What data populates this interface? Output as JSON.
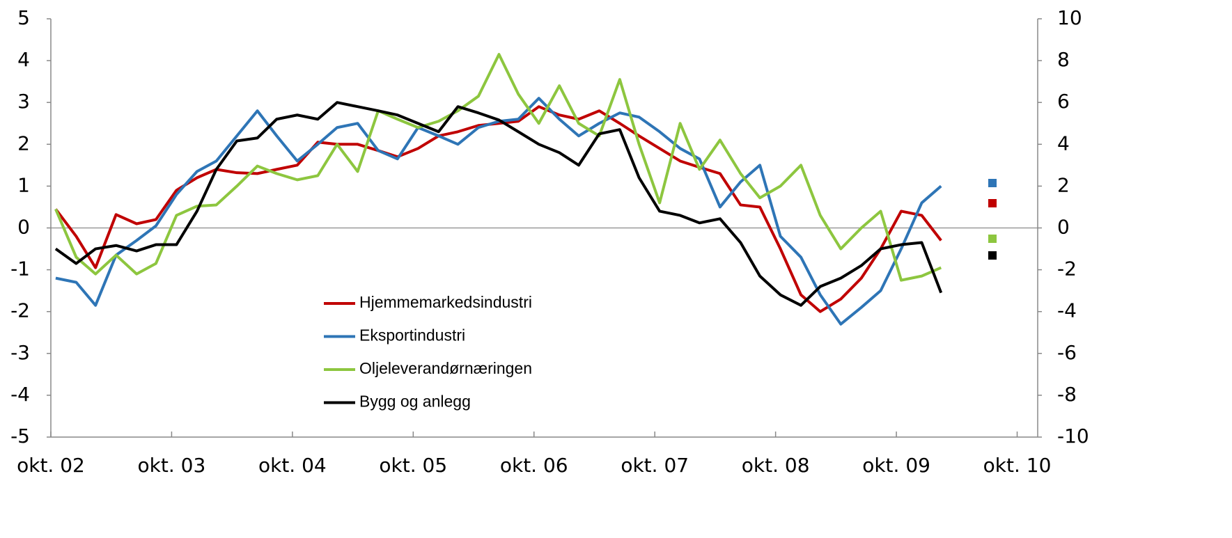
{
  "chart_data": {
    "type": "line",
    "x": [
      2002.79,
      2002.96,
      2003.12,
      2003.29,
      2003.46,
      2003.62,
      2003.79,
      2003.96,
      2004.12,
      2004.29,
      2004.46,
      2004.62,
      2004.79,
      2004.96,
      2005.12,
      2005.29,
      2005.46,
      2005.62,
      2005.79,
      2005.96,
      2006.12,
      2006.29,
      2006.46,
      2006.62,
      2006.79,
      2006.96,
      2007.12,
      2007.29,
      2007.46,
      2007.62,
      2007.79,
      2007.96,
      2008.12,
      2008.29,
      2008.46,
      2008.62,
      2008.79,
      2008.96,
      2009.12,
      2009.29,
      2009.46,
      2009.62,
      2009.79,
      2009.96,
      2010.12
    ],
    "xlim": [
      2002.75,
      2010.92
    ],
    "xticks": [
      {
        "value": 2002.75,
        "label": "okt. 02"
      },
      {
        "value": 2003.75,
        "label": "okt. 03"
      },
      {
        "value": 2004.75,
        "label": "okt. 04"
      },
      {
        "value": 2005.75,
        "label": "okt. 05"
      },
      {
        "value": 2006.75,
        "label": "okt. 06"
      },
      {
        "value": 2007.75,
        "label": "okt. 07"
      },
      {
        "value": 2008.75,
        "label": "okt. 08"
      },
      {
        "value": 2009.75,
        "label": "okt. 09"
      },
      {
        "value": 2010.75,
        "label": "okt. 10"
      }
    ],
    "ylim": [
      -5,
      5
    ],
    "yticks": [
      -5,
      -4,
      -3,
      -2,
      -1,
      0,
      1,
      2,
      3,
      4,
      5
    ],
    "y2lim": [
      -10,
      10
    ],
    "y2ticks": [
      -10,
      -8,
      -6,
      -4,
      -2,
      0,
      2,
      4,
      6,
      8,
      10
    ],
    "series": [
      {
        "name": "Hjemmemarkedsindustri",
        "color": "#c00000",
        "values": [
          0.45,
          -0.2,
          -0.95,
          0.32,
          0.1,
          0.2,
          0.9,
          1.2,
          1.4,
          1.32,
          1.3,
          1.4,
          1.5,
          2.05,
          2.0,
          2.0,
          1.85,
          1.7,
          1.9,
          2.2,
          2.3,
          2.45,
          2.5,
          2.55,
          2.9,
          2.7,
          2.6,
          2.8,
          2.5,
          2.2,
          1.9,
          1.6,
          1.45,
          1.3,
          0.55,
          0.5,
          -0.5,
          -1.6,
          -2.0,
          -1.7,
          -1.2,
          -0.5,
          0.4,
          0.3,
          -0.3
        ]
      },
      {
        "name": "Eksportindustri",
        "color": "#2e75b6",
        "values": [
          -1.2,
          -1.3,
          -1.85,
          -0.65,
          -0.3,
          0.05,
          0.8,
          1.35,
          1.6,
          2.2,
          2.8,
          2.2,
          1.6,
          2.0,
          2.4,
          2.5,
          1.85,
          1.65,
          2.4,
          2.2,
          2.0,
          2.4,
          2.55,
          2.6,
          3.1,
          2.6,
          2.2,
          2.5,
          2.75,
          2.65,
          2.3,
          1.9,
          1.65,
          0.5,
          1.1,
          1.5,
          -0.2,
          -0.7,
          -1.6,
          -2.3,
          -1.9,
          -1.5,
          -0.5,
          0.6,
          1.0
        ]
      },
      {
        "name": "Oljeleverandørnæringen",
        "color": "#8dc63f",
        "values": [
          0.45,
          -0.7,
          -1.1,
          -0.65,
          -1.1,
          -0.85,
          0.3,
          0.52,
          0.55,
          1.0,
          1.48,
          1.3,
          1.15,
          1.25,
          2.0,
          1.35,
          2.8,
          2.6,
          2.4,
          2.55,
          2.8,
          3.15,
          4.15,
          3.2,
          2.5,
          3.4,
          2.5,
          2.2,
          3.55,
          2.0,
          0.6,
          2.5,
          1.4,
          2.1,
          1.3,
          0.72,
          1.0,
          1.5,
          0.3,
          -0.5,
          0.0,
          0.4,
          -1.25,
          -1.15,
          -0.95
        ]
      },
      {
        "name": "Bygg og anlegg",
        "color": "#000000",
        "values": [
          -0.5,
          -0.85,
          -0.5,
          -0.42,
          -0.55,
          -0.4,
          -0.4,
          0.4,
          1.4,
          2.08,
          2.15,
          2.6,
          2.7,
          2.6,
          3.0,
          2.9,
          2.8,
          2.7,
          2.5,
          2.3,
          2.9,
          2.75,
          2.58,
          2.3,
          2.0,
          1.8,
          1.5,
          2.25,
          2.35,
          1.2,
          0.4,
          0.3,
          0.12,
          0.22,
          -0.35,
          -1.15,
          -1.6,
          -1.85,
          -1.4,
          -1.2,
          -0.9,
          -0.5,
          -0.4,
          -0.35,
          -1.55
        ]
      }
    ]
  }
}
